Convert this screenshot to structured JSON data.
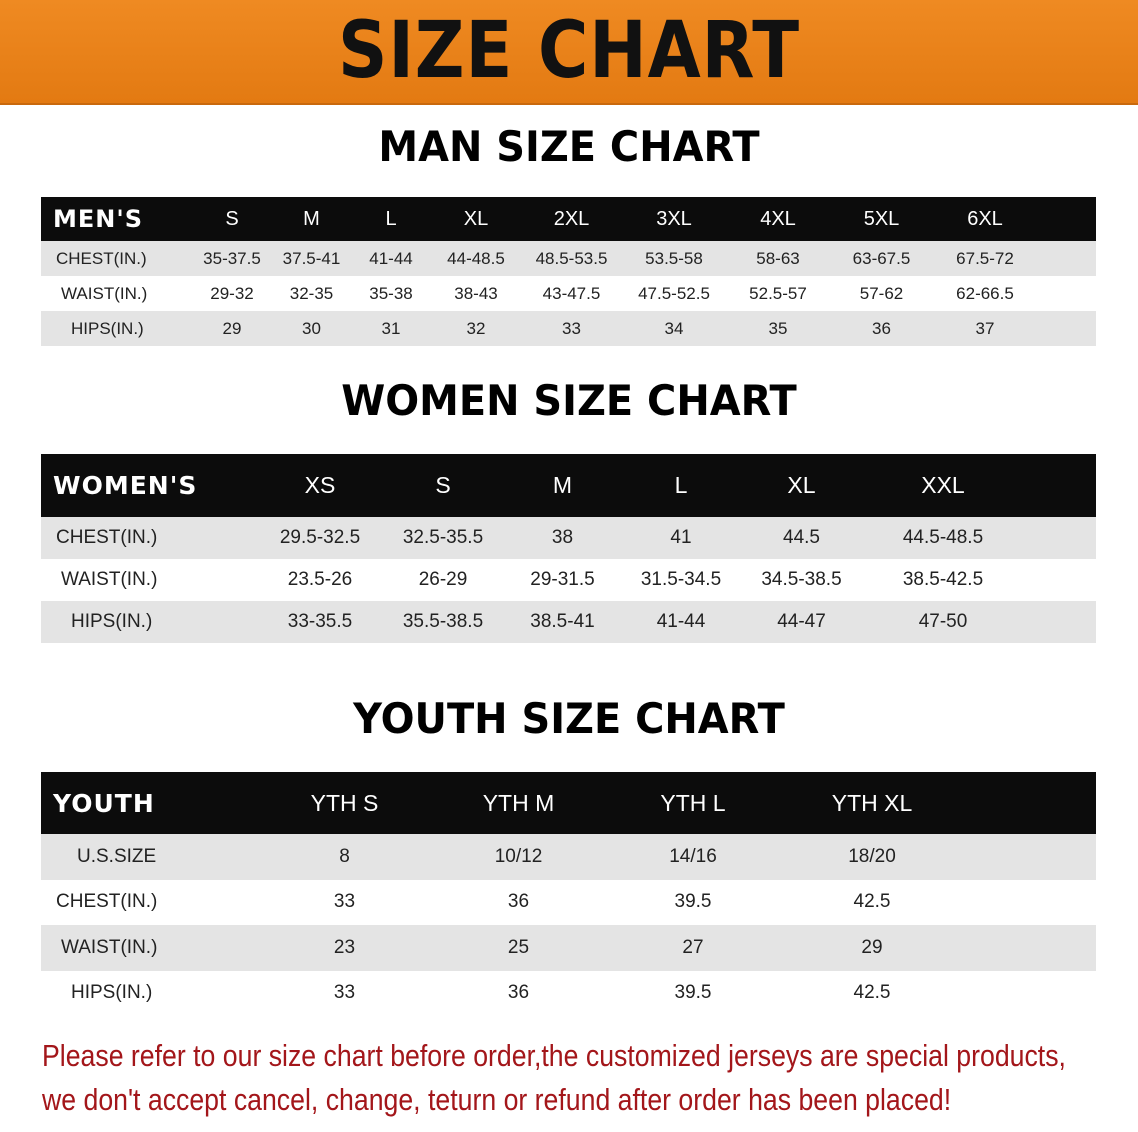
{
  "title": "SIZE CHART",
  "colors": {
    "banner": "#e8801a",
    "header_row": "#0c0c0c",
    "stripe": "#e4e4e4",
    "note": "#a3161a"
  },
  "men": {
    "section_title": "MAN SIZE CHART",
    "header": "MEN'S",
    "sizes": [
      "S",
      "M",
      "L",
      "XL",
      "2XL",
      "3XL",
      "4XL",
      "5XL",
      "6XL"
    ],
    "rows": [
      {
        "label": "CHEST(IN.)",
        "values": [
          "35-37.5",
          "37.5-41",
          "41-44",
          "44-48.5",
          "48.5-53.5",
          "53.5-58",
          "58-63",
          "63-67.5",
          "67.5-72"
        ]
      },
      {
        "label": "WAIST(IN.)",
        "values": [
          "29-32",
          "32-35",
          "35-38",
          "38-43",
          "43-47.5",
          "47.5-52.5",
          "52.5-57",
          "57-62",
          "62-66.5"
        ]
      },
      {
        "label": "HIPS(IN.)",
        "values": [
          "29",
          "30",
          "31",
          "32",
          "33",
          "34",
          "35",
          "36",
          "37"
        ]
      }
    ]
  },
  "women": {
    "section_title": "WOMEN SIZE CHART",
    "header": "WOMEN'S",
    "sizes": [
      "XS",
      "S",
      "M",
      "L",
      "XL",
      "XXL"
    ],
    "rows": [
      {
        "label": "CHEST(IN.)",
        "values": [
          "29.5-32.5",
          "32.5-35.5",
          "38",
          "41",
          "44.5",
          "44.5-48.5"
        ]
      },
      {
        "label": "WAIST(IN.)",
        "values": [
          "23.5-26",
          "26-29",
          "29-31.5",
          "31.5-34.5",
          "34.5-38.5",
          "38.5-42.5"
        ]
      },
      {
        "label": "HIPS(IN.)",
        "values": [
          "33-35.5",
          "35.5-38.5",
          "38.5-41",
          "41-44",
          "44-47",
          "47-50"
        ]
      }
    ]
  },
  "youth": {
    "section_title": "YOUTH SIZE CHART",
    "header": "YOUTH",
    "sizes": [
      "YTH S",
      "YTH M",
      "YTH L",
      "YTH XL"
    ],
    "rows": [
      {
        "label": "U.S.SIZE",
        "values": [
          "8",
          "10/12",
          "14/16",
          "18/20"
        ]
      },
      {
        "label": "CHEST(IN.)",
        "values": [
          "33",
          "36",
          "39.5",
          "42.5"
        ]
      },
      {
        "label": "WAIST(IN.)",
        "values": [
          "23",
          "25",
          "27",
          "29"
        ]
      },
      {
        "label": "HIPS(IN.)",
        "values": [
          "33",
          "36",
          "39.5",
          "42.5"
        ]
      }
    ]
  },
  "note": {
    "line1": "Please refer to our size chart before order,the customized jerseys are special products,",
    "line2": "we don't accept cancel, change, teturn or refund after order has been placed!"
  }
}
